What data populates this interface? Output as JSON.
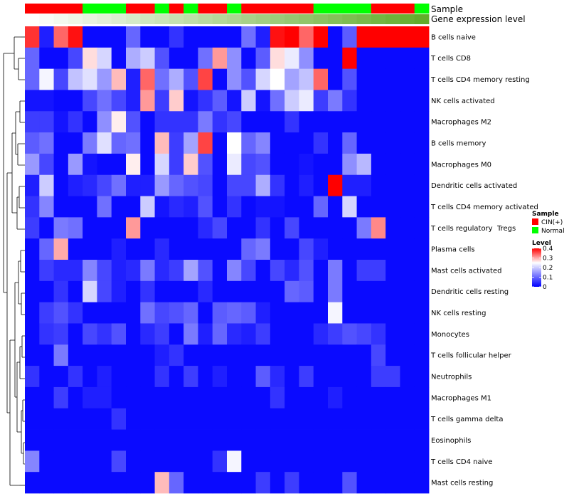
{
  "chart_data": {
    "type": "heatmap",
    "annotation_rows": [
      "Sample",
      "Gene expression level"
    ],
    "rows": [
      "B cells naive",
      "T cells CD8",
      "T cells CD4 memory resting",
      "NK cells activated",
      "Macrophages M2",
      "B cells memory",
      "Macrophages M0",
      "Dendritic cells activated",
      "T cells CD4 memory activated",
      "T cells regulatory  Tregs",
      "Plasma cells",
      "Mast cells activated",
      "Dendritic cells resting",
      "NK cells resting",
      "Monocytes",
      "T cells follicular helper",
      "Neutrophils",
      "Macrophages M1",
      "T cells gamma delta",
      "Eosinophils",
      "T cells CD4 naive",
      "Mast cells resting"
    ],
    "sample_groups": [
      "CIN",
      "CIN",
      "CIN",
      "CIN",
      "N",
      "N",
      "N",
      "CIN",
      "CIN",
      "N",
      "CIN",
      "N",
      "CIN",
      "CIN",
      "N",
      "CIN",
      "CIN",
      "CIN",
      "CIN",
      "CIN",
      "N",
      "N",
      "N",
      "N",
      "CIN",
      "CIN",
      "CIN",
      "N"
    ],
    "values": [
      [
        0.37,
        0.03,
        0.34,
        0.39,
        0.01,
        0.01,
        0.01,
        0.1,
        0.01,
        0.01,
        0.05,
        0.01,
        0.01,
        0.01,
        0.01,
        0.11,
        0.03,
        0.39,
        0.4,
        0.34,
        0.4,
        0.01,
        0.09,
        0.4,
        0.4,
        0.4,
        0.4,
        0.4
      ],
      [
        0.1,
        0.01,
        0.01,
        0.07,
        0.27,
        0.21,
        0.01,
        0.17,
        0.2,
        0.08,
        0.01,
        0.01,
        0.11,
        0.31,
        0.14,
        0.01,
        0.09,
        0.27,
        0.23,
        0.14,
        0.01,
        0.01,
        0.4,
        0.01,
        0.01,
        0.01,
        0.01,
        0.01
      ],
      [
        0.1,
        0.24,
        0.07,
        0.19,
        0.22,
        0.15,
        0.29,
        0.03,
        0.34,
        0.11,
        0.17,
        0.08,
        0.36,
        0.01,
        0.14,
        0.08,
        0.21,
        0.25,
        0.16,
        0.19,
        0.34,
        0.01,
        0.08,
        0.01,
        0.01,
        0.01,
        0.01,
        0.01
      ],
      [
        0.02,
        0.02,
        0.01,
        0.01,
        0.07,
        0.11,
        0.07,
        0.03,
        0.31,
        0.06,
        0.28,
        0.02,
        0.05,
        0.09,
        0.02,
        0.2,
        0.02,
        0.11,
        0.2,
        0.23,
        0.06,
        0.12,
        0.05,
        0.01,
        0.01,
        0.01,
        0.01,
        0.01
      ],
      [
        0.06,
        0.06,
        0.02,
        0.05,
        0.01,
        0.14,
        0.26,
        0.08,
        0.01,
        0.05,
        0.05,
        0.05,
        0.12,
        0.05,
        0.07,
        0.01,
        0.01,
        0.01,
        0.05,
        0.01,
        0.01,
        0.01,
        0.01,
        0.01,
        0.01,
        0.01,
        0.01,
        0.01
      ],
      [
        0.09,
        0.11,
        0.01,
        0.01,
        0.12,
        0.22,
        0.1,
        0.11,
        0.01,
        0.29,
        0.06,
        0.16,
        0.36,
        0.01,
        0.25,
        0.1,
        0.13,
        0.01,
        0.01,
        0.01,
        0.05,
        0.01,
        0.1,
        0.01,
        0.01,
        0.01,
        0.01,
        0.01
      ],
      [
        0.15,
        0.07,
        0.01,
        0.15,
        0.02,
        0.01,
        0.01,
        0.26,
        0.01,
        0.21,
        0.06,
        0.28,
        0.08,
        0.01,
        0.23,
        0.07,
        0.08,
        0.01,
        0.01,
        0.02,
        0.01,
        0.01,
        0.14,
        0.18,
        0.01,
        0.01,
        0.01,
        0.01
      ],
      [
        0.03,
        0.2,
        0.01,
        0.03,
        0.04,
        0.07,
        0.11,
        0.03,
        0.03,
        0.15,
        0.1,
        0.08,
        0.07,
        0.01,
        0.07,
        0.07,
        0.17,
        0.05,
        0.01,
        0.03,
        0.01,
        0.4,
        0.03,
        0.03,
        0.01,
        0.01,
        0.01,
        0.01
      ],
      [
        0.05,
        0.13,
        0.01,
        0.01,
        0.01,
        0.11,
        0.01,
        0.01,
        0.2,
        0.02,
        0.04,
        0.03,
        0.08,
        0.01,
        0.05,
        0.01,
        0.02,
        0.02,
        0.01,
        0.01,
        0.1,
        0.01,
        0.21,
        0.01,
        0.01,
        0.01,
        0.01,
        0.01
      ],
      [
        0.06,
        0.01,
        0.12,
        0.11,
        0.01,
        0.01,
        0.01,
        0.31,
        0.01,
        0.01,
        0.01,
        0.01,
        0.04,
        0.07,
        0.01,
        0.01,
        0.05,
        0.01,
        0.07,
        0.01,
        0.01,
        0.01,
        0.01,
        0.12,
        0.32,
        0.01,
        0.01,
        0.01
      ],
      [
        0.01,
        0.1,
        0.3,
        0.01,
        0.01,
        0.01,
        0.03,
        0.01,
        0.01,
        0.04,
        0.01,
        0.01,
        0.01,
        0.01,
        0.01,
        0.1,
        0.12,
        0.01,
        0.01,
        0.07,
        0.03,
        0.01,
        0.01,
        0.01,
        0.01,
        0.01,
        0.01,
        0.01
      ],
      [
        0.01,
        0.06,
        0.04,
        0.04,
        0.13,
        0.07,
        0.03,
        0.04,
        0.12,
        0.04,
        0.06,
        0.16,
        0.08,
        0.01,
        0.13,
        0.07,
        0.01,
        0.07,
        0.04,
        0.08,
        0.01,
        0.12,
        0.01,
        0.06,
        0.06,
        0.01,
        0.01,
        0.01
      ],
      [
        0.01,
        0.01,
        0.05,
        0.01,
        0.21,
        0.07,
        0.03,
        0.01,
        0.05,
        0.01,
        0.01,
        0.01,
        0.04,
        0.01,
        0.01,
        0.01,
        0.01,
        0.01,
        0.1,
        0.09,
        0.01,
        0.12,
        0.01,
        0.01,
        0.01,
        0.01,
        0.01,
        0.01
      ],
      [
        0.01,
        0.06,
        0.08,
        0.05,
        0.01,
        0.01,
        0.01,
        0.01,
        0.11,
        0.07,
        0.08,
        0.1,
        0.01,
        0.09,
        0.1,
        0.09,
        0.03,
        0.01,
        0.01,
        0.01,
        0.01,
        0.24,
        0.01,
        0.01,
        0.01,
        0.01,
        0.01,
        0.01
      ],
      [
        0.01,
        0.05,
        0.06,
        0.01,
        0.07,
        0.05,
        0.08,
        0.01,
        0.04,
        0.06,
        0.01,
        0.12,
        0.03,
        0.1,
        0.04,
        0.03,
        0.06,
        0.01,
        0.01,
        0.01,
        0.04,
        0.06,
        0.08,
        0.07,
        0.05,
        0.01,
        0.01,
        0.01
      ],
      [
        0.01,
        0.01,
        0.12,
        0.01,
        0.01,
        0.01,
        0.01,
        0.01,
        0.01,
        0.03,
        0.05,
        0.01,
        0.01,
        0.01,
        0.01,
        0.01,
        0.01,
        0.01,
        0.01,
        0.01,
        0.01,
        0.01,
        0.01,
        0.01,
        0.07,
        0.01,
        0.01,
        0.01
      ],
      [
        0.05,
        0.01,
        0.01,
        0.05,
        0.01,
        0.03,
        0.01,
        0.01,
        0.01,
        0.05,
        0.01,
        0.06,
        0.01,
        0.03,
        0.01,
        0.01,
        0.09,
        0.04,
        0.01,
        0.06,
        0.01,
        0.01,
        0.01,
        0.01,
        0.06,
        0.06,
        0.01,
        0.01
      ],
      [
        0.01,
        0.01,
        0.06,
        0.01,
        0.03,
        0.03,
        0.01,
        0.01,
        0.01,
        0.01,
        0.01,
        0.01,
        0.01,
        0.01,
        0.01,
        0.01,
        0.01,
        0.05,
        0.01,
        0.01,
        0.01,
        0.03,
        0.01,
        0.01,
        0.01,
        0.01,
        0.01,
        0.01
      ],
      [
        0.01,
        0.01,
        0.01,
        0.01,
        0.01,
        0.01,
        0.05,
        0.01,
        0.01,
        0.01,
        0.01,
        0.01,
        0.01,
        0.01,
        0.01,
        0.01,
        0.01,
        0.01,
        0.01,
        0.01,
        0.01,
        0.01,
        0.01,
        0.01,
        0.01,
        0.01,
        0.01,
        0.01
      ],
      [
        0.01,
        0.01,
        0.01,
        0.01,
        0.01,
        0.01,
        0.01,
        0.01,
        0.01,
        0.01,
        0.01,
        0.01,
        0.01,
        0.01,
        0.01,
        0.01,
        0.01,
        0.01,
        0.01,
        0.01,
        0.01,
        0.01,
        0.01,
        0.01,
        0.01,
        0.01,
        0.01,
        0.01
      ],
      [
        0.13,
        0.01,
        0.01,
        0.01,
        0.01,
        0.01,
        0.07,
        0.01,
        0.01,
        0.01,
        0.01,
        0.01,
        0.01,
        0.05,
        0.24,
        0.01,
        0.01,
        0.01,
        0.01,
        0.01,
        0.01,
        0.01,
        0.01,
        0.01,
        0.01,
        0.01,
        0.01,
        0.01
      ],
      [
        0.01,
        0.01,
        0.01,
        0.01,
        0.01,
        0.01,
        0.01,
        0.01,
        0.01,
        0.29,
        0.1,
        0.01,
        0.01,
        0.01,
        0.01,
        0.01,
        0.06,
        0.01,
        0.06,
        0.01,
        0.01,
        0.01,
        0.08,
        0.01,
        0.01,
        0.01,
        0.01,
        0.01
      ]
    ],
    "color_scale": {
      "min": 0,
      "max": 0.4,
      "low": "#0000FF",
      "mid": "#FFFFFF",
      "high": "#FF0000",
      "mid_value": 0.25
    },
    "legend": {
      "sample_title": "Sample",
      "sample_entries": [
        {
          "key": "CIN",
          "label": "CIN(+)",
          "color": "#FF0000"
        },
        {
          "key": "N",
          "label": "Normal",
          "color": "#00FF00"
        }
      ],
      "level_title": "Level",
      "level_ticks": [
        0.4,
        0.3,
        0.2,
        0.1,
        0
      ],
      "level_tick_labels": [
        "0.4",
        "0.3",
        "0.2",
        "0.1",
        "0"
      ]
    },
    "gene_expression": {
      "low_color": "#FFFFFF",
      "high_color": "#62AD2A"
    }
  }
}
